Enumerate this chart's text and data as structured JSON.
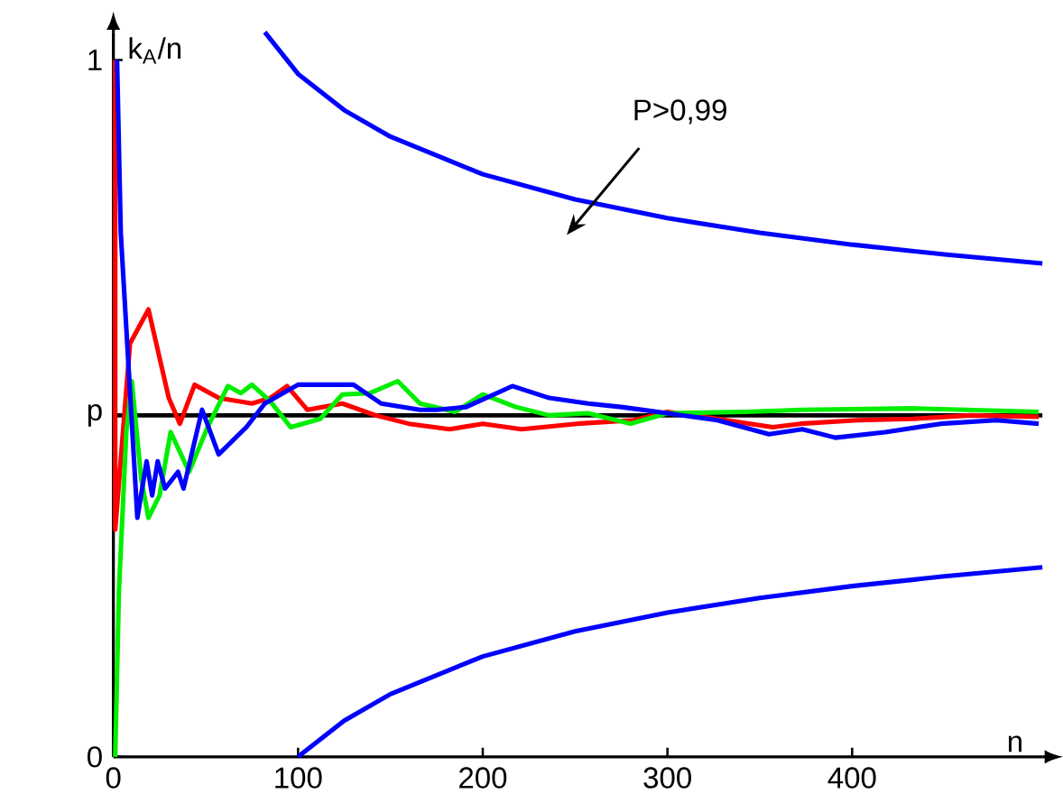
{
  "chart_data": {
    "type": "line",
    "xlabel": "n",
    "ylabel": "k$_{A}$/n",
    "xlim": [
      0,
      503
    ],
    "ylim": [
      0,
      1.04
    ],
    "xticks": [
      0,
      100,
      200,
      300,
      400
    ],
    "yticks": [
      0,
      {
        "value": 0.49,
        "label": "p"
      },
      1
    ],
    "grid": false,
    "marker": "none",
    "line_style": "solid",
    "ref_lines": [
      {
        "axis": "y",
        "value": 0.49,
        "color": "#000000"
      }
    ],
    "annotations": [
      "P>0,99"
    ],
    "series": [
      {
        "color": "#ff0000",
        "x": [
          1,
          1,
          9,
          19,
          30,
          36,
          44,
          57,
          75,
          85,
          94,
          105,
          124,
          142,
          160,
          182,
          200,
          221,
          251,
          282,
          300,
          327,
          357,
          372,
          403,
          433,
          464,
          501
        ],
        "values": [
          1,
          0.326,
          0.593,
          0.642,
          0.515,
          0.478,
          0.534,
          0.515,
          0.507,
          0.515,
          0.532,
          0.498,
          0.507,
          0.49,
          0.478,
          0.47,
          0.478,
          0.47,
          0.478,
          0.483,
          0.495,
          0.485,
          0.473,
          0.478,
          0.483,
          0.485,
          0.49,
          0.488
        ]
      },
      {
        "color": "#00ee00",
        "x": [
          1,
          3,
          7,
          10,
          15,
          19,
          25,
          31,
          41,
          51,
          62,
          69,
          75,
          85,
          96,
          112,
          124,
          139,
          154,
          166,
          185,
          200,
          218,
          236,
          257,
          280,
          300,
          342,
          373,
          433,
          501
        ],
        "values": [
          0,
          0.238,
          0.466,
          0.539,
          0.4,
          0.343,
          0.375,
          0.466,
          0.409,
          0.473,
          0.532,
          0.522,
          0.534,
          0.51,
          0.473,
          0.485,
          0.52,
          0.522,
          0.539,
          0.507,
          0.495,
          0.52,
          0.502,
          0.49,
          0.493,
          0.478,
          0.493,
          0.495,
          0.498,
          0.5,
          0.495
        ]
      },
      {
        "color": "#0000ff",
        "x": [
          2,
          4,
          13,
          18,
          21,
          24,
          28,
          35,
          38,
          48,
          57,
          72,
          82,
          100,
          115,
          130,
          145,
          166,
          175,
          191,
          216,
          236,
          257,
          275,
          300,
          327,
          355,
          373,
          391,
          418,
          448,
          478,
          501
        ],
        "values": [
          1,
          0.752,
          0.343,
          0.424,
          0.375,
          0.424,
          0.385,
          0.409,
          0.385,
          0.498,
          0.434,
          0.473,
          0.507,
          0.534,
          0.534,
          0.534,
          0.507,
          0.498,
          0.498,
          0.502,
          0.532,
          0.515,
          0.507,
          0.502,
          0.493,
          0.483,
          0.463,
          0.47,
          0.458,
          0.466,
          0.478,
          0.483,
          0.478
        ]
      },
      {
        "color": "#0000ff",
        "x": [
          82,
          100,
          125,
          150,
          200,
          250,
          300,
          350,
          400,
          450,
          503
        ],
        "values": [
          1.04,
          0.98,
          0.928,
          0.89,
          0.836,
          0.8,
          0.773,
          0.752,
          0.735,
          0.721,
          0.708
        ]
      },
      {
        "color": "#0000ff",
        "x": [
          100,
          125,
          150,
          200,
          250,
          300,
          350,
          400,
          450,
          503
        ],
        "values": [
          0,
          0.052,
          0.09,
          0.144,
          0.18,
          0.207,
          0.228,
          0.245,
          0.259,
          0.272
        ]
      }
    ]
  }
}
